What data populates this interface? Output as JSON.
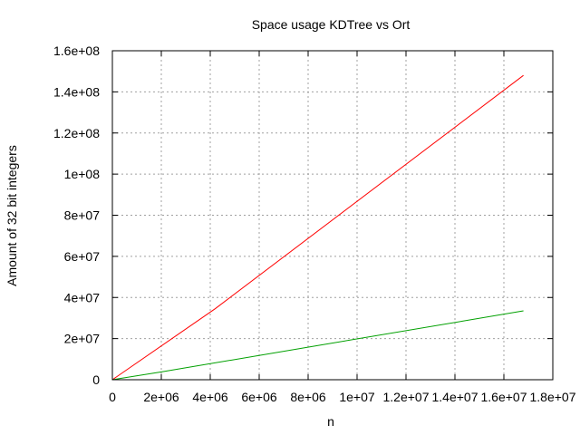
{
  "chart_data": {
    "type": "line",
    "title": "Space usage KDTree vs Ort",
    "xlabel": "n",
    "ylabel": "Amount of 32 bit integers",
    "xlim": [
      0,
      18000000
    ],
    "ylim": [
      0,
      160000000
    ],
    "x_ticks": [
      0,
      2000000,
      4000000,
      6000000,
      8000000,
      10000000,
      12000000,
      14000000,
      16000000,
      18000000
    ],
    "x_tick_labels": [
      "0",
      "2e+06",
      "4e+06",
      "6e+06",
      "8e+06",
      "1e+07",
      "1.2e+07",
      "1.4e+07",
      "1.6e+07",
      "1.8e+07"
    ],
    "y_ticks": [
      0,
      20000000,
      40000000,
      60000000,
      80000000,
      100000000,
      120000000,
      140000000,
      160000000
    ],
    "y_tick_labels": [
      "0",
      "2e+07",
      "4e+07",
      "6e+07",
      "8e+07",
      "1e+08",
      "1.2e+08",
      "1.4e+08",
      "1.6e+08"
    ],
    "grid": true,
    "series": [
      {
        "color": "#ff0000",
        "x": [
          0,
          4200000,
          16800000
        ],
        "y": [
          0,
          34500000,
          148000000
        ]
      },
      {
        "color": "#00a000",
        "x": [
          0,
          2000000,
          16800000
        ],
        "y": [
          0,
          3800000,
          33500000
        ]
      }
    ]
  }
}
